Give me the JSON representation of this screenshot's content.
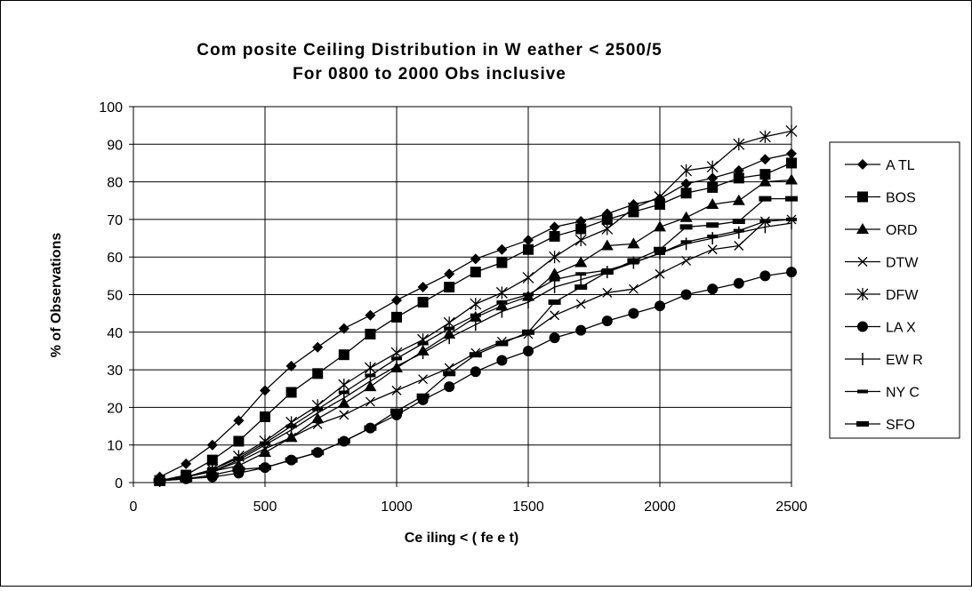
{
  "chart_data": {
    "type": "line",
    "title": "Com posite Ceiling Distribution in W eather < 2500/5",
    "subtitle": "For 0800 to 2000 Obs inclusive",
    "xlabel": "Ce iling < ( fe e t)",
    "ylabel": "% of Observations",
    "xlim": [
      0,
      2500
    ],
    "ylim": [
      0,
      100
    ],
    "x_ticks": [
      0,
      500,
      1000,
      1500,
      2000,
      2500
    ],
    "y_ticks": [
      0,
      10,
      20,
      30,
      40,
      50,
      60,
      70,
      80,
      90,
      100
    ],
    "grid": true,
    "legend_position": "right",
    "x": [
      100,
      200,
      300,
      400,
      500,
      600,
      700,
      800,
      900,
      1000,
      1100,
      1200,
      1300,
      1400,
      1500,
      1600,
      1700,
      1800,
      1900,
      2000,
      2100,
      2200,
      2300,
      2400,
      2500
    ],
    "series": [
      {
        "name": "A TL",
        "marker": "diamond",
        "values": [
          1.5,
          5,
          10,
          16.5,
          24.5,
          31,
          36,
          41,
          44.5,
          48.5,
          52,
          55.5,
          59.5,
          62,
          64.5,
          68,
          69.5,
          71.5,
          74,
          75.5,
          79.5,
          81,
          83,
          86,
          87.5
        ]
      },
      {
        "name": "BOS",
        "marker": "square",
        "values": [
          0.5,
          2,
          6,
          11,
          17.5,
          24,
          29,
          34,
          39.5,
          44,
          48,
          52,
          56,
          58.5,
          62,
          65.5,
          67.5,
          70,
          72,
          74,
          77,
          78.5,
          81,
          82,
          85
        ]
      },
      {
        "name": "ORD",
        "marker": "triangle",
        "values": [
          0.5,
          1.5,
          3,
          4.5,
          8,
          12,
          17,
          21,
          25.5,
          30.5,
          35,
          39.5,
          44,
          47,
          49.5,
          55.5,
          58.5,
          63,
          63.5,
          68,
          70.5,
          74,
          75,
          80,
          80.5
        ]
      },
      {
        "name": "DTW",
        "marker": "x",
        "values": [
          0.5,
          1.5,
          3,
          5.5,
          9,
          12,
          15.5,
          18,
          21.5,
          24.5,
          27.5,
          30.5,
          34.5,
          37.5,
          39.5,
          44.5,
          47.5,
          50.5,
          51.5,
          55.5,
          59,
          62,
          63,
          69.5,
          70
        ]
      },
      {
        "name": "DFW",
        "marker": "star",
        "values": [
          0.5,
          1.5,
          3.5,
          7,
          11,
          16,
          20.5,
          26,
          30.5,
          34.5,
          38,
          42.5,
          47.5,
          50.5,
          54.5,
          60,
          64.5,
          67.5,
          73,
          76,
          83,
          84,
          90,
          92,
          93.5
        ]
      },
      {
        "name": "LA X",
        "marker": "circle",
        "values": [
          0.5,
          1,
          1.5,
          2.5,
          4,
          6,
          8,
          11,
          14.5,
          18,
          22,
          25.5,
          29.5,
          32.5,
          35,
          38.5,
          40.5,
          43,
          45,
          47,
          50,
          51.5,
          53,
          55,
          56
        ]
      },
      {
        "name": "EW R",
        "marker": "plus",
        "values": [
          0.5,
          1.5,
          3,
          6,
          10,
          14,
          18.5,
          22.5,
          27,
          31,
          34.5,
          38.5,
          42,
          45.5,
          48,
          52,
          54,
          56,
          58.5,
          61,
          63.5,
          65,
          66.5,
          68,
          69
        ]
      },
      {
        "name": "NY C",
        "marker": "dash",
        "values": [
          0.5,
          1.5,
          3.5,
          6.5,
          10.5,
          15,
          19.5,
          24,
          28.5,
          33,
          37,
          41,
          44.5,
          48,
          50,
          54,
          55.5,
          56.5,
          58.5,
          61,
          64,
          65.5,
          67,
          69.5,
          70
        ]
      },
      {
        "name": "SFO",
        "marker": "dash-thick",
        "values": [
          0.5,
          1,
          2,
          3.5,
          4,
          6,
          8,
          11,
          14.5,
          19,
          23,
          29,
          34,
          37,
          40,
          48,
          52,
          56,
          59,
          62,
          68,
          68.5,
          69.5,
          75.5,
          75.5
        ]
      }
    ]
  }
}
